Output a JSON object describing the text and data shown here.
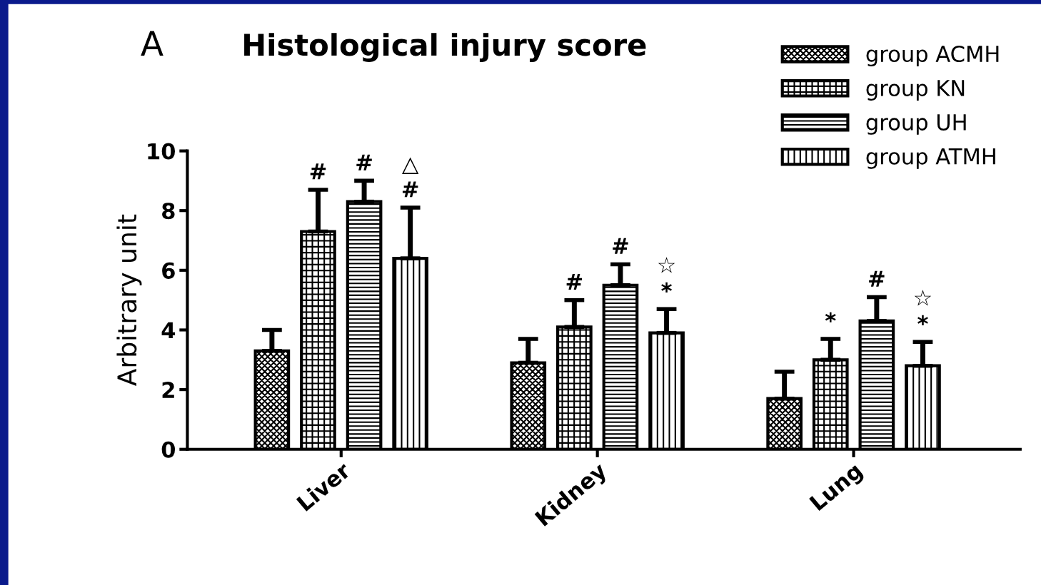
{
  "chart_data": {
    "type": "bar",
    "title": "Histological injury score",
    "ylabel": "Arbitrary unit",
    "categories": [
      "Liver",
      "Kidney",
      "Lung"
    ],
    "series": [
      {
        "name": "group ACMH",
        "color": "#000000",
        "values": [
          3.3,
          2.9,
          1.7
        ],
        "errors": [
          [
            3.3,
            4.0
          ],
          [
            2.9,
            3.7
          ],
          [
            1.7,
            2.6
          ]
        ]
      },
      {
        "name": "group KN",
        "color": "#000000",
        "values": [
          7.3,
          4.1,
          3.0
        ],
        "errors": [
          [
            7.3,
            8.7
          ],
          [
            4.1,
            5.0
          ],
          [
            3.0,
            3.7
          ]
        ]
      },
      {
        "name": "group UH",
        "color": "#000000",
        "values": [
          8.3,
          5.5,
          4.3
        ],
        "errors": [
          [
            8.3,
            9.0
          ],
          [
            5.5,
            6.2
          ],
          [
            4.3,
            5.1
          ]
        ]
      },
      {
        "name": "group ATMH",
        "color": "#000000",
        "values": [
          6.4,
          3.9,
          2.8
        ],
        "errors": [
          [
            6.4,
            8.1
          ],
          [
            3.9,
            4.7
          ],
          [
            2.8,
            3.6
          ]
        ]
      }
    ],
    "ylim": [
      0,
      10
    ],
    "yticks": [
      0,
      2,
      4,
      6,
      8,
      10
    ],
    "grid": false,
    "legend": "top right",
    "annotations": [
      "A",
      "#",
      "#",
      "#",
      "△",
      "#",
      "#",
      "*",
      "☆",
      "*",
      "#",
      "*",
      "☆"
    ]
  }
}
